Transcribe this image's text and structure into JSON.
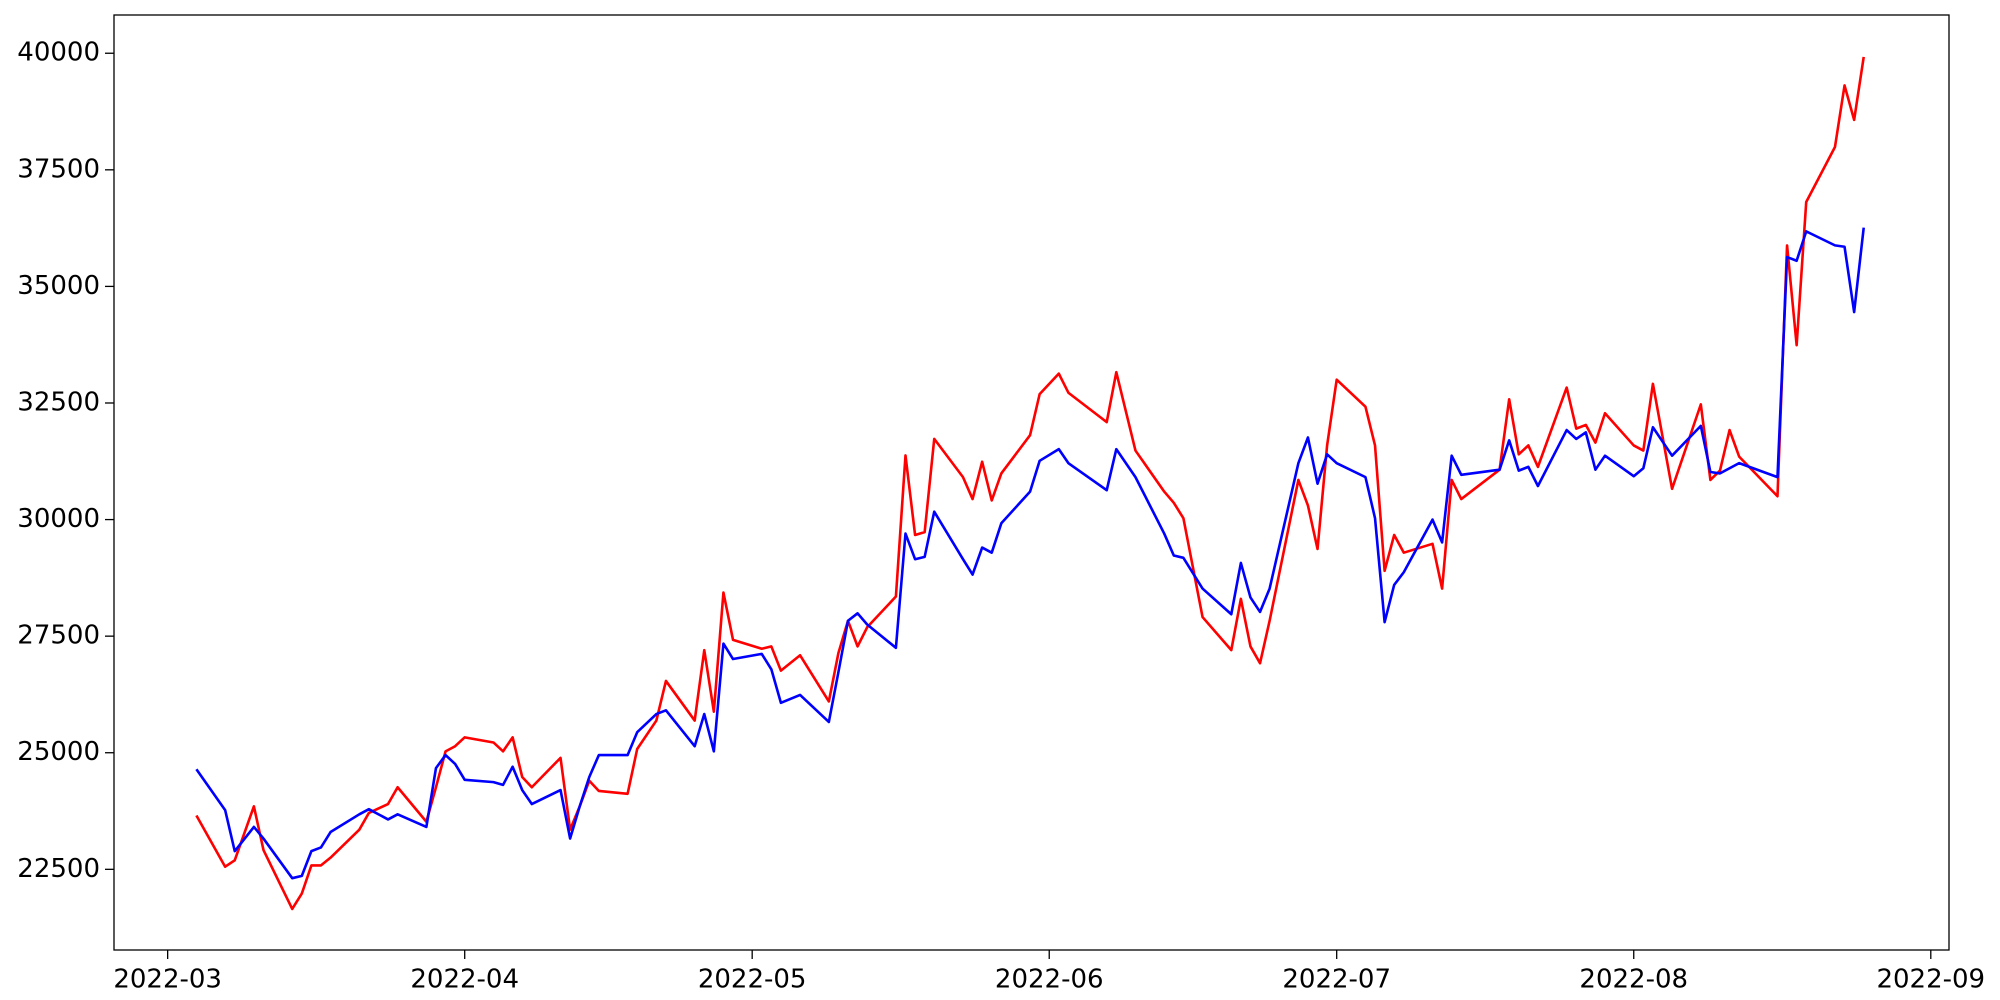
{
  "chart_data": {
    "type": "line",
    "x": [
      3,
      6,
      7,
      9,
      10,
      13,
      14,
      15,
      16,
      17,
      20,
      21,
      23,
      24,
      27,
      28,
      29,
      30,
      31,
      34,
      35,
      36,
      37,
      38,
      41,
      42,
      43,
      44,
      45,
      48,
      49,
      51,
      52,
      55,
      56,
      57,
      58,
      59,
      62,
      63,
      64,
      66,
      69,
      70,
      71,
      72,
      73,
      76,
      77,
      78,
      79,
      80,
      83,
      84,
      85,
      86,
      87,
      90,
      91,
      93,
      94,
      98,
      99,
      101,
      104,
      105,
      106,
      108,
      111,
      112,
      113,
      114,
      115,
      118,
      119,
      120,
      121,
      122,
      125,
      126,
      127,
      128,
      129,
      132,
      133,
      134,
      135,
      139,
      140,
      141,
      142,
      143,
      146,
      147,
      148,
      149,
      150,
      153,
      154,
      155,
      157,
      160,
      161,
      162,
      163,
      164,
      168,
      169,
      170,
      171,
      174,
      175,
      176,
      177
    ],
    "series": [
      {
        "color": "#ff0000",
        "values": [
          23655,
          22556,
          22694,
          23850,
          22914,
          21650,
          21980,
          22584,
          22584,
          22750,
          23350,
          23710,
          23900,
          24260,
          23520,
          24260,
          25030,
          25140,
          25330,
          25220,
          25030,
          25330,
          24480,
          24260,
          24890,
          23350,
          23850,
          24400,
          24180,
          24120,
          25080,
          25690,
          26540,
          25690,
          27200,
          25880,
          28435,
          27420,
          27230,
          27280,
          26760,
          27090,
          26100,
          27140,
          27830,
          27280,
          27690,
          28350,
          31375,
          29670,
          29730,
          31730,
          30910,
          30440,
          31240,
          30410,
          30990,
          31810,
          32690,
          33130,
          32720,
          32090,
          33160,
          31480,
          30600,
          30360,
          30030,
          27910,
          27200,
          28300,
          27280,
          26920,
          27830,
          30850,
          30300,
          29370,
          31590,
          33000,
          32420,
          31590,
          28900,
          29670,
          29290,
          29480,
          28520,
          30850,
          30440,
          31070,
          32580,
          31400,
          31590,
          31130,
          32830,
          31950,
          32030,
          31650,
          32280,
          31590,
          31480,
          32910,
          30660,
          32470,
          30850,
          31050,
          31920,
          31350,
          30500,
          35880,
          33740,
          36810,
          37990,
          39310,
          38570,
          39920
        ]
      },
      {
        "color": "#0000ff",
        "values": [
          24645,
          23770,
          22890,
          23410,
          23160,
          22310,
          22360,
          22890,
          22970,
          23300,
          23680,
          23790,
          23570,
          23680,
          23410,
          24670,
          24950,
          24760,
          24420,
          24370,
          24310,
          24700,
          24200,
          23900,
          24200,
          23160,
          23850,
          24480,
          24950,
          24950,
          25440,
          25830,
          25910,
          25140,
          25830,
          25030,
          27340,
          27010,
          27120,
          26790,
          26070,
          26240,
          25660,
          26730,
          27830,
          27990,
          27750,
          27250,
          29700,
          29150,
          29200,
          30170,
          29150,
          28820,
          29400,
          29290,
          29920,
          30600,
          31260,
          31510,
          31210,
          30630,
          31510,
          30910,
          29700,
          29230,
          29180,
          28520,
          27970,
          29070,
          28330,
          28020,
          28520,
          31210,
          31760,
          30770,
          31400,
          31210,
          30910,
          30030,
          27800,
          28600,
          28870,
          30000,
          29510,
          31370,
          30960,
          31070,
          31700,
          31050,
          31130,
          30720,
          31920,
          31730,
          31870,
          31070,
          31370,
          30930,
          31100,
          31980,
          31370,
          32010,
          31020,
          30990,
          31100,
          31210,
          30910,
          35630,
          35550,
          36180,
          35880,
          35850,
          34450,
          36260
        ]
      }
    ],
    "xlim": [
      -5.6,
      185.9
    ],
    "xticks": [
      {
        "value": 0,
        "label": "2022-03"
      },
      {
        "value": 31,
        "label": "2022-04"
      },
      {
        "value": 61,
        "label": "2022-05"
      },
      {
        "value": 92,
        "label": "2022-06"
      },
      {
        "value": 122,
        "label": "2022-07"
      },
      {
        "value": 153,
        "label": "2022-08"
      },
      {
        "value": 184,
        "label": "2022-09"
      }
    ],
    "ylim": [
      20770,
      40820
    ],
    "yticks": [
      22500,
      25000,
      27500,
      30000,
      32500,
      35000,
      37500,
      40000
    ]
  }
}
